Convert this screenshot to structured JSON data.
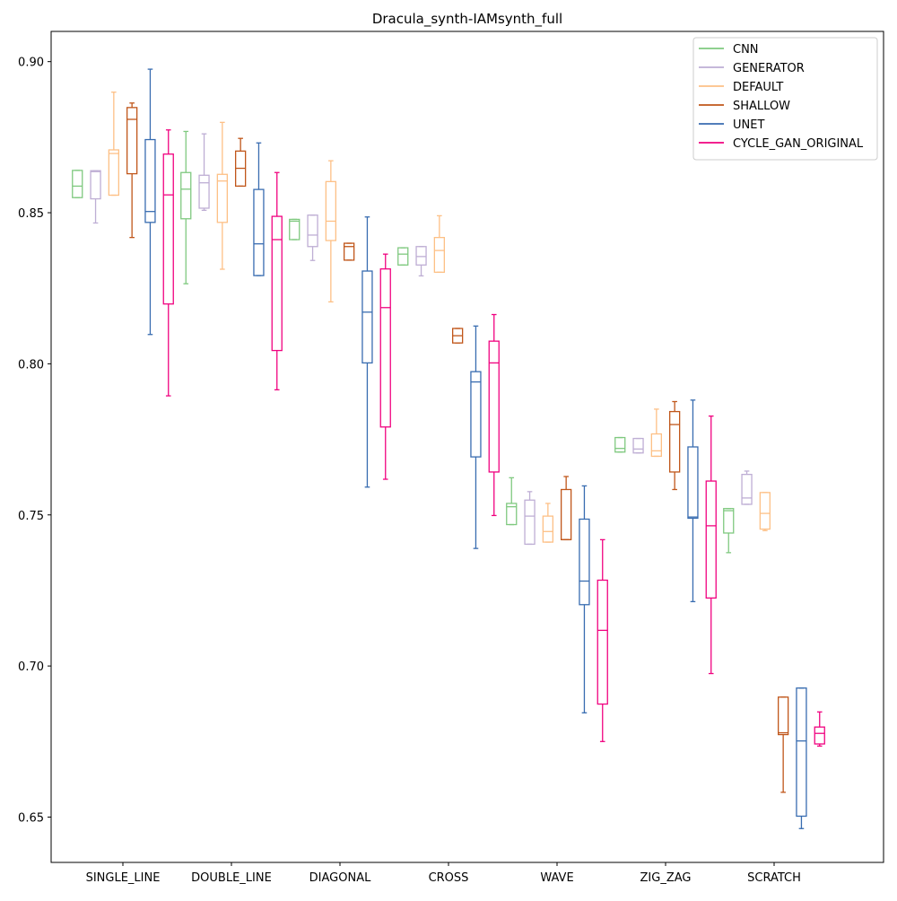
{
  "chart_data": {
    "type": "box",
    "title": "Dracula_synth-IAMsynth_full",
    "xlabel": "",
    "ylabel": "",
    "ylim": [
      0.635,
      0.91
    ],
    "yticks": [
      0.65,
      0.7,
      0.75,
      0.8,
      0.85,
      0.9
    ],
    "ytick_labels": [
      "0.65",
      "0.70",
      "0.75",
      "0.80",
      "0.85",
      "0.90"
    ],
    "categories": [
      "SINGLE_LINE",
      "DOUBLE_LINE",
      "DIAGONAL",
      "CROSS",
      "WAVE",
      "ZIG_ZAG",
      "SCRATCH"
    ],
    "legend_position": "top-right",
    "grid": false,
    "series": [
      {
        "name": "CNN",
        "color": "#7fc97f",
        "boxes": [
          {
            "whislo": 0.855,
            "q1": 0.855,
            "med": 0.8588,
            "q3": 0.864,
            "whishi": 0.864
          },
          {
            "whislo": 0.8265,
            "q1": 0.848,
            "med": 0.8578,
            "q3": 0.8633,
            "whishi": 0.8769
          },
          {
            "whislo": 0.8411,
            "q1": 0.8411,
            "med": 0.8472,
            "q3": 0.8478,
            "whishi": 0.8478
          },
          {
            "whislo": 0.8327,
            "q1": 0.8327,
            "med": 0.8363,
            "q3": 0.8384,
            "whishi": 0.8384
          },
          {
            "whislo": 0.7468,
            "q1": 0.7468,
            "med": 0.7527,
            "q3": 0.7538,
            "whishi": 0.7623
          },
          {
            "whislo": 0.7708,
            "q1": 0.7708,
            "med": 0.772,
            "q3": 0.7756,
            "whishi": 0.7756
          },
          {
            "whislo": 0.7375,
            "q1": 0.744,
            "med": 0.7514,
            "q3": 0.7521,
            "whishi": 0.7521
          }
        ]
      },
      {
        "name": "GENERATOR",
        "color": "#beaed4",
        "boxes": [
          {
            "whislo": 0.8466,
            "q1": 0.8546,
            "med": 0.8636,
            "q3": 0.8639,
            "whishi": 0.8639
          },
          {
            "whislo": 0.8508,
            "q1": 0.8515,
            "med": 0.8599,
            "q3": 0.8624,
            "whishi": 0.8761
          },
          {
            "whislo": 0.8342,
            "q1": 0.8388,
            "med": 0.8426,
            "q3": 0.8492,
            "whishi": 0.8492
          },
          {
            "whislo": 0.8291,
            "q1": 0.8327,
            "med": 0.8355,
            "q3": 0.8388,
            "whishi": 0.8388
          },
          {
            "whislo": 0.7403,
            "q1": 0.7403,
            "med": 0.7496,
            "q3": 0.7549,
            "whishi": 0.7577
          },
          {
            "whislo": 0.7705,
            "q1": 0.7705,
            "med": 0.7718,
            "q3": 0.7753,
            "whishi": 0.7753
          },
          {
            "whislo": 0.7535,
            "q1": 0.7535,
            "med": 0.7556,
            "q3": 0.7634,
            "whishi": 0.7645
          }
        ]
      },
      {
        "name": "DEFAULT",
        "color": "#fdc086",
        "boxes": [
          {
            "whislo": 0.8558,
            "q1": 0.8558,
            "med": 0.8696,
            "q3": 0.8708,
            "whishi": 0.8899
          },
          {
            "whislo": 0.8313,
            "q1": 0.8468,
            "med": 0.8605,
            "q3": 0.8627,
            "whishi": 0.8799
          },
          {
            "whislo": 0.8205,
            "q1": 0.8408,
            "med": 0.8472,
            "q3": 0.8603,
            "whishi": 0.8672
          },
          {
            "whislo": 0.8303,
            "q1": 0.8303,
            "med": 0.8375,
            "q3": 0.8418,
            "whishi": 0.849
          },
          {
            "whislo": 0.741,
            "q1": 0.741,
            "med": 0.7445,
            "q3": 0.7496,
            "whishi": 0.7538
          },
          {
            "whislo": 0.7694,
            "q1": 0.7694,
            "med": 0.7712,
            "q3": 0.7768,
            "whishi": 0.785
          },
          {
            "whislo": 0.7448,
            "q1": 0.7453,
            "med": 0.7505,
            "q3": 0.7574,
            "whishi": 0.7574
          }
        ]
      },
      {
        "name": "SHALLOW",
        "color": "#c0561a",
        "boxes": [
          {
            "whislo": 0.8418,
            "q1": 0.8629,
            "med": 0.8809,
            "q3": 0.8848,
            "whishi": 0.8863
          },
          {
            "whislo": 0.8588,
            "q1": 0.8588,
            "med": 0.8647,
            "q3": 0.8704,
            "whishi": 0.8746
          },
          {
            "whislo": 0.8343,
            "q1": 0.8343,
            "med": 0.8388,
            "q3": 0.8399,
            "whishi": 0.8399
          },
          {
            "whislo": 0.8069,
            "q1": 0.8069,
            "med": 0.8093,
            "q3": 0.8117,
            "whishi": 0.8117
          },
          {
            "whislo": 0.7418,
            "q1": 0.7418,
            "med": 0.7418,
            "q3": 0.7584,
            "whishi": 0.7627
          },
          {
            "whislo": 0.7584,
            "q1": 0.7642,
            "med": 0.7799,
            "q3": 0.7842,
            "whishi": 0.7875
          },
          {
            "whislo": 0.6582,
            "q1": 0.6773,
            "med": 0.6779,
            "q3": 0.6897,
            "whishi": 0.6897
          }
        ]
      },
      {
        "name": "UNET",
        "color": "#386cb0",
        "boxes": [
          {
            "whislo": 0.8097,
            "q1": 0.8468,
            "med": 0.8504,
            "q3": 0.8742,
            "whishi": 0.8975
          },
          {
            "whislo": 0.8292,
            "q1": 0.8292,
            "med": 0.8397,
            "q3": 0.8577,
            "whishi": 0.8731
          },
          {
            "whislo": 0.7592,
            "q1": 0.8003,
            "med": 0.8171,
            "q3": 0.8307,
            "whishi": 0.8486
          },
          {
            "whislo": 0.7389,
            "q1": 0.7692,
            "med": 0.794,
            "q3": 0.7974,
            "whishi": 0.8125
          },
          {
            "whislo": 0.6845,
            "q1": 0.7203,
            "med": 0.7281,
            "q3": 0.7486,
            "whishi": 0.7596
          },
          {
            "whislo": 0.7213,
            "q1": 0.7489,
            "med": 0.7493,
            "q3": 0.7725,
            "whishi": 0.788
          },
          {
            "whislo": 0.6462,
            "q1": 0.6503,
            "med": 0.6752,
            "q3": 0.6927,
            "whishi": 0.6927
          }
        ]
      },
      {
        "name": "CYCLE_GAN_ORIGINAL",
        "color": "#f0027f",
        "boxes": [
          {
            "whislo": 0.7894,
            "q1": 0.8198,
            "med": 0.8559,
            "q3": 0.8694,
            "whishi": 0.8774
          },
          {
            "whislo": 0.7914,
            "q1": 0.8044,
            "med": 0.8411,
            "q3": 0.8488,
            "whishi": 0.8633
          },
          {
            "whislo": 0.7618,
            "q1": 0.7791,
            "med": 0.8186,
            "q3": 0.8314,
            "whishi": 0.8363
          },
          {
            "whislo": 0.7498,
            "q1": 0.7642,
            "med": 0.8003,
            "q3": 0.8075,
            "whishi": 0.8163
          },
          {
            "whislo": 0.675,
            "q1": 0.6874,
            "med": 0.7118,
            "q3": 0.7284,
            "whishi": 0.7418
          },
          {
            "whislo": 0.6975,
            "q1": 0.7225,
            "med": 0.7464,
            "q3": 0.7612,
            "whishi": 0.7827
          },
          {
            "whislo": 0.6735,
            "q1": 0.6742,
            "med": 0.6777,
            "q3": 0.6798,
            "whishi": 0.6848
          }
        ]
      }
    ]
  }
}
